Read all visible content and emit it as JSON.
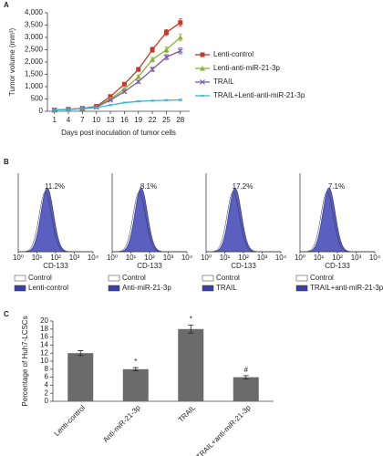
{
  "chart_data": [
    {
      "type": "line",
      "label": "A",
      "ylabel": "Tumor volume (mm³)",
      "xlabel": "Days post inoculation of tumor cells",
      "x": [
        1,
        4,
        7,
        10,
        13,
        16,
        19,
        22,
        25,
        28
      ],
      "xlim": [
        -0.5,
        30
      ],
      "xticks": [
        1,
        4,
        7,
        10,
        13,
        16,
        19,
        22,
        25,
        28
      ],
      "ylim": [
        0,
        4000
      ],
      "yticks": [
        0,
        500,
        {
          "value": 1000,
          "label": "1,000"
        },
        {
          "value": 1500,
          "label": "1,500"
        },
        {
          "value": 2000,
          "label": "2,000"
        },
        {
          "value": 2500,
          "label": "2,500"
        },
        {
          "value": 3000,
          "label": "3,000"
        },
        {
          "value": 3500,
          "label": "3,500"
        },
        {
          "value": 4000,
          "label": "4,000"
        }
      ],
      "series": [
        {
          "name": "Lenti-control",
          "color": "#c0392b",
          "marker": "square",
          "values": [
            50,
            80,
            120,
            200,
            600,
            1100,
            1700,
            2500,
            3200,
            3600
          ],
          "errors": [
            10,
            10,
            15,
            20,
            40,
            60,
            80,
            100,
            120,
            150
          ]
        },
        {
          "name": "Lenti-anti-miR-21-3p",
          "color": "#8db23a",
          "marker": "triangle",
          "values": [
            50,
            80,
            120,
            180,
            500,
            900,
            1400,
            2100,
            2500,
            3000
          ],
          "errors": [
            10,
            10,
            15,
            20,
            40,
            50,
            70,
            90,
            110,
            140
          ]
        },
        {
          "name": "TRAIL",
          "color": "#7b5ea7",
          "marker": "x",
          "values": [
            50,
            80,
            110,
            170,
            450,
            800,
            1200,
            1700,
            2200,
            2450
          ],
          "errors": [
            10,
            10,
            15,
            20,
            30,
            50,
            60,
            80,
            100,
            120
          ]
        },
        {
          "name": "TRAIL+Lenti-anti-miR-21-3p",
          "color": "#3cb6d3",
          "marker": "dash",
          "values": [
            50,
            70,
            100,
            150,
            250,
            350,
            400,
            430,
            450,
            460
          ],
          "errors": [
            10,
            10,
            10,
            15,
            20,
            20,
            25,
            25,
            25,
            30
          ]
        }
      ]
    },
    {
      "type": "flow-histograms",
      "label": "B",
      "xlabel": "CD-133",
      "xscale": "log",
      "xlim": [
        1,
        10000
      ],
      "xticks": [
        {
          "value": 1,
          "label": "10⁰"
        },
        {
          "value": 10,
          "label": "10¹"
        },
        {
          "value": 100,
          "label": "10²"
        },
        {
          "value": 1000,
          "label": "10³"
        },
        {
          "value": 10000,
          "label": "10⁴"
        }
      ],
      "colors": [
        "#ffffff",
        "#3b3fa8"
      ],
      "values": [
        11.2,
        8.1,
        17.2,
        7.1
      ],
      "value_labels": [
        "11.2%",
        "8.1%",
        "17.2%",
        "7.1%"
      ],
      "legends": [
        [
          "Control",
          "Lenti-control"
        ],
        [
          "Control",
          "Anti-miR-21-3p"
        ],
        [
          "Control",
          "TRAIL"
        ],
        [
          "Control",
          "TRAIL+anti-miR-21-3p"
        ]
      ]
    },
    {
      "type": "bar",
      "label": "C",
      "ylabel": "Percentage of Huh7-LCSCs",
      "color": "#6b6b6b",
      "categories": [
        "Lenti-control",
        "Anti-miR-21-3p",
        "TRAIL",
        "TRAIL+anti-miR-21-3p"
      ],
      "values": [
        12,
        8,
        18,
        6
      ],
      "errors": [
        0.6,
        0.4,
        1,
        0.4
      ],
      "markers": [
        null,
        "*",
        "*",
        "#"
      ],
      "ylim": [
        0,
        20
      ],
      "yticks": [
        0,
        2,
        4,
        6,
        8,
        10,
        12,
        14,
        16,
        18,
        20
      ]
    }
  ]
}
